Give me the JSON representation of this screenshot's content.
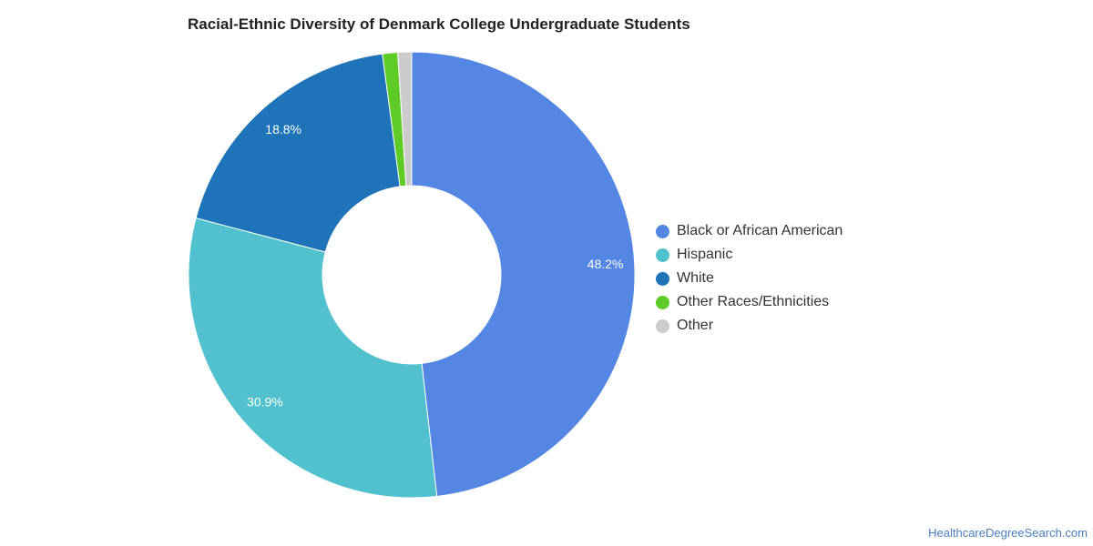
{
  "chart_data": {
    "type": "pie",
    "title": "Racial-Ethnic Diversity of Denmark College Undergraduate Students",
    "donut": true,
    "legend_position": "right",
    "slices": [
      {
        "label": "Black or African American",
        "value": 48.2,
        "color": "#5486e3",
        "data_label": "48.2%"
      },
      {
        "label": "Hispanic",
        "value": 30.9,
        "color": "#51c1ce",
        "data_label": "30.9%"
      },
      {
        "label": "White",
        "value": 18.8,
        "color": "#1f73b8",
        "data_label": "18.8%"
      },
      {
        "label": "Other Races/Ethnicities",
        "value": 1.1,
        "color": "#5ecb26",
        "data_label": ""
      },
      {
        "label": "Other",
        "value": 1.0,
        "color": "#cccccc",
        "data_label": ""
      }
    ]
  },
  "footer": {
    "source": "HealthcareDegreeSearch.com"
  }
}
